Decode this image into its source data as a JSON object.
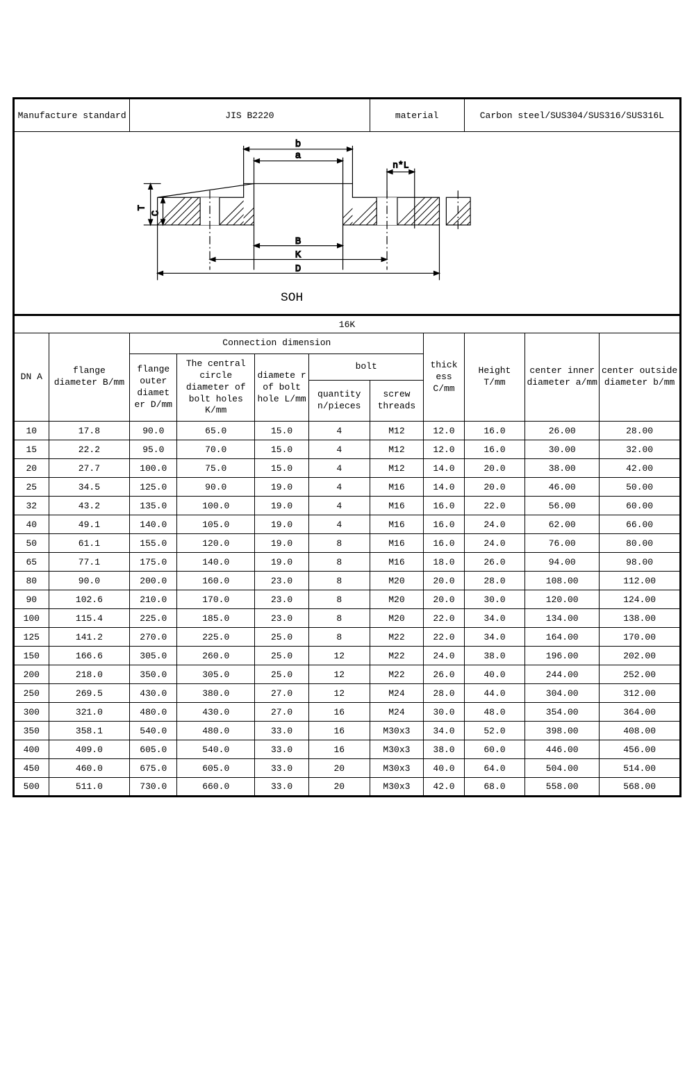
{
  "header": {
    "mfg_label": "Manufacture standard",
    "mfg_value": "JIS B2220",
    "material_label": "material",
    "material_value": "Carbon steel/SUS304/SUS316/SUS316L"
  },
  "diagram": {
    "label_soh": "SOH",
    "dim_b": "b",
    "dim_a": "a",
    "dim_nL": "n*L",
    "dim_T": "T",
    "dim_C": "C",
    "dim_B": "B",
    "dim_K": "K",
    "dim_D": "D"
  },
  "pressure": "16K",
  "columns": {
    "dna": "DN A",
    "flange_B": "flange diameter B/mm",
    "conn_header": "Connection dimension",
    "flange_D": "flange outer diamet er D/mm",
    "circle_K": "The central circle diameter of bolt holes K/mm",
    "hole_L": "diamete r of bolt hole L/mm",
    "bolt": "bolt",
    "bolt_qty": "quantity n/pieces",
    "bolt_thread": "screw threads",
    "thick_C": "thick ess C/mm",
    "height_T": "Height T/mm",
    "inner_a": "center inner diameter a/mm",
    "outer_b": "center outside diameter b/mm"
  },
  "rows": [
    [
      "10",
      "17.8",
      "90.0",
      "65.0",
      "15.0",
      "4",
      "M12",
      "12.0",
      "16.0",
      "26.00",
      "28.00"
    ],
    [
      "15",
      "22.2",
      "95.0",
      "70.0",
      "15.0",
      "4",
      "M12",
      "12.0",
      "16.0",
      "30.00",
      "32.00"
    ],
    [
      "20",
      "27.7",
      "100.0",
      "75.0",
      "15.0",
      "4",
      "M12",
      "14.0",
      "20.0",
      "38.00",
      "42.00"
    ],
    [
      "25",
      "34.5",
      "125.0",
      "90.0",
      "19.0",
      "4",
      "M16",
      "14.0",
      "20.0",
      "46.00",
      "50.00"
    ],
    [
      "32",
      "43.2",
      "135.0",
      "100.0",
      "19.0",
      "4",
      "M16",
      "16.0",
      "22.0",
      "56.00",
      "60.00"
    ],
    [
      "40",
      "49.1",
      "140.0",
      "105.0",
      "19.0",
      "4",
      "M16",
      "16.0",
      "24.0",
      "62.00",
      "66.00"
    ],
    [
      "50",
      "61.1",
      "155.0",
      "120.0",
      "19.0",
      "8",
      "M16",
      "16.0",
      "24.0",
      "76.00",
      "80.00"
    ],
    [
      "65",
      "77.1",
      "175.0",
      "140.0",
      "19.0",
      "8",
      "M16",
      "18.0",
      "26.0",
      "94.00",
      "98.00"
    ],
    [
      "80",
      "90.0",
      "200.0",
      "160.0",
      "23.0",
      "8",
      "M20",
      "20.0",
      "28.0",
      "108.00",
      "112.00"
    ],
    [
      "90",
      "102.6",
      "210.0",
      "170.0",
      "23.0",
      "8",
      "M20",
      "20.0",
      "30.0",
      "120.00",
      "124.00"
    ],
    [
      "100",
      "115.4",
      "225.0",
      "185.0",
      "23.0",
      "8",
      "M20",
      "22.0",
      "34.0",
      "134.00",
      "138.00"
    ],
    [
      "125",
      "141.2",
      "270.0",
      "225.0",
      "25.0",
      "8",
      "M22",
      "22.0",
      "34.0",
      "164.00",
      "170.00"
    ],
    [
      "150",
      "166.6",
      "305.0",
      "260.0",
      "25.0",
      "12",
      "M22",
      "24.0",
      "38.0",
      "196.00",
      "202.00"
    ],
    [
      "200",
      "218.0",
      "350.0",
      "305.0",
      "25.0",
      "12",
      "M22",
      "26.0",
      "40.0",
      "244.00",
      "252.00"
    ],
    [
      "250",
      "269.5",
      "430.0",
      "380.0",
      "27.0",
      "12",
      "M24",
      "28.0",
      "44.0",
      "304.00",
      "312.00"
    ],
    [
      "300",
      "321.0",
      "480.0",
      "430.0",
      "27.0",
      "16",
      "M24",
      "30.0",
      "48.0",
      "354.00",
      "364.00"
    ],
    [
      "350",
      "358.1",
      "540.0",
      "480.0",
      "33.0",
      "16",
      "M30x3",
      "34.0",
      "52.0",
      "398.00",
      "408.00"
    ],
    [
      "400",
      "409.0",
      "605.0",
      "540.0",
      "33.0",
      "16",
      "M30x3",
      "38.0",
      "60.0",
      "446.00",
      "456.00"
    ],
    [
      "450",
      "460.0",
      "675.0",
      "605.0",
      "33.0",
      "20",
      "M30x3",
      "40.0",
      "64.0",
      "504.00",
      "514.00"
    ],
    [
      "500",
      "511.0",
      "730.0",
      "660.0",
      "33.0",
      "20",
      "M30x3",
      "42.0",
      "68.0",
      "558.00",
      "568.00"
    ]
  ],
  "style": {
    "col_widths_pct": [
      5.2,
      12,
      7,
      11.5,
      8,
      9,
      8,
      6,
      9,
      11,
      12
    ],
    "font_family": "Courier New",
    "border_color": "#000000",
    "bg_color": "#ffffff"
  }
}
